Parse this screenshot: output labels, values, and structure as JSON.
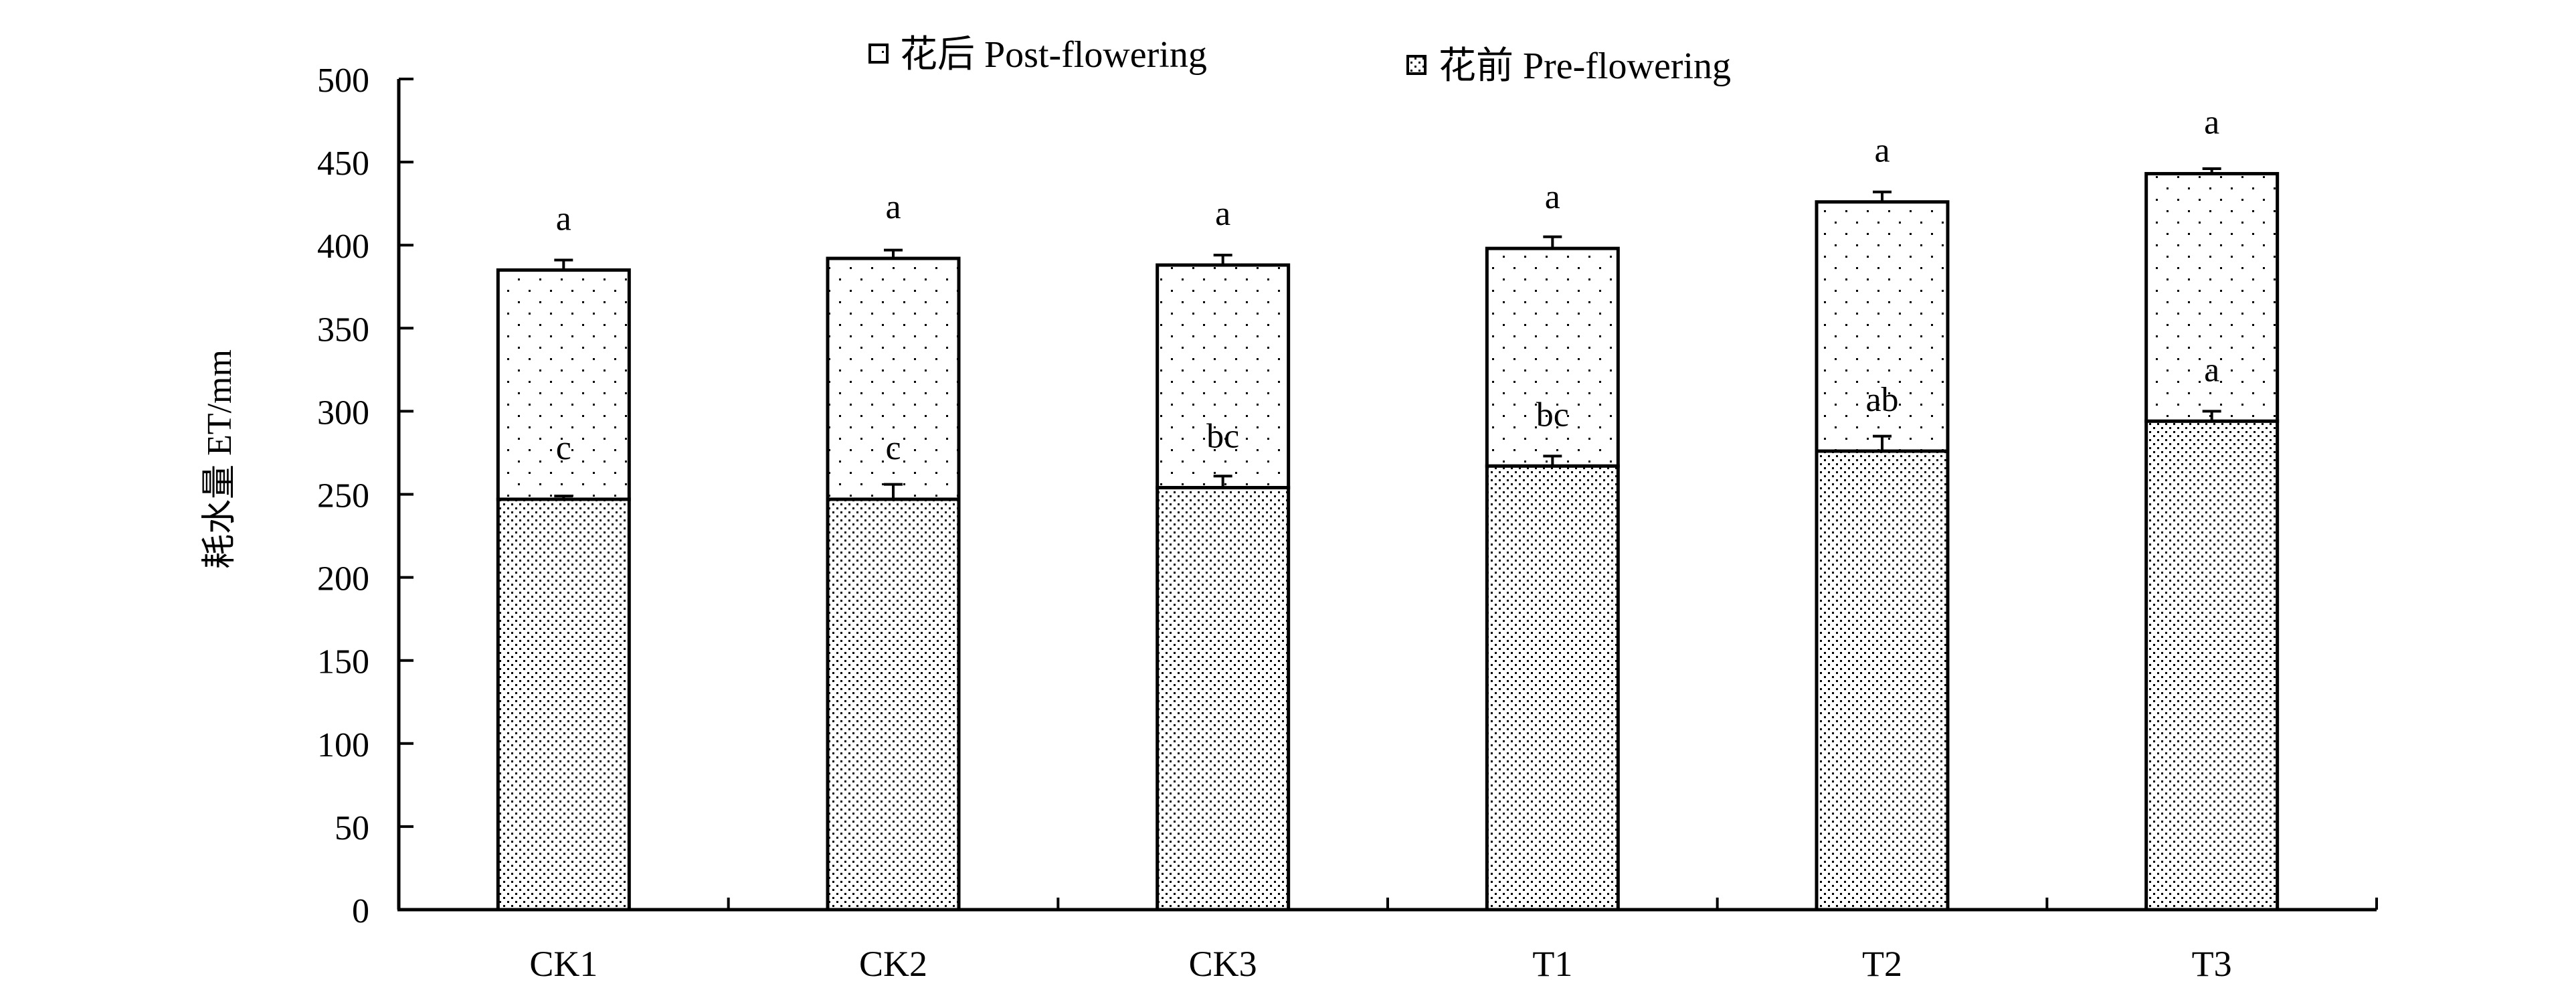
{
  "chart_data": {
    "type": "bar",
    "stacked": true,
    "categories": [
      "CK1",
      "CK2",
      "CK3",
      "T1",
      "T2",
      "T3"
    ],
    "series": [
      {
        "name": "花前 Pre-flowering",
        "pattern": "dense-dots",
        "values": [
          247,
          247,
          254,
          267,
          276,
          294
        ],
        "errors": [
          2,
          9,
          7,
          6,
          9,
          6
        ],
        "labels": [
          "c",
          "c",
          "bc",
          "bc",
          "ab",
          "a"
        ]
      },
      {
        "name": "花后 Post-flowering",
        "pattern": "sparse-dots",
        "values": [
          138,
          145,
          134,
          131,
          150,
          149
        ],
        "errors": [
          6,
          5,
          6,
          7,
          6,
          3
        ],
        "labels": [
          "a",
          "a",
          "a",
          "a",
          "a",
          "a"
        ]
      }
    ],
    "totals": [
      385,
      392,
      388,
      398,
      426,
      443
    ],
    "ylabel": "耗水量 ET/mm",
    "xlabel": "",
    "ylim": [
      0,
      500
    ],
    "yticks": [
      0,
      50,
      100,
      150,
      200,
      250,
      300,
      350,
      400,
      450,
      500
    ],
    "legend": {
      "position": "top-center",
      "entries": [
        "花后 Post-flowering",
        "花前 Pre-flowering"
      ]
    },
    "grid": false
  }
}
